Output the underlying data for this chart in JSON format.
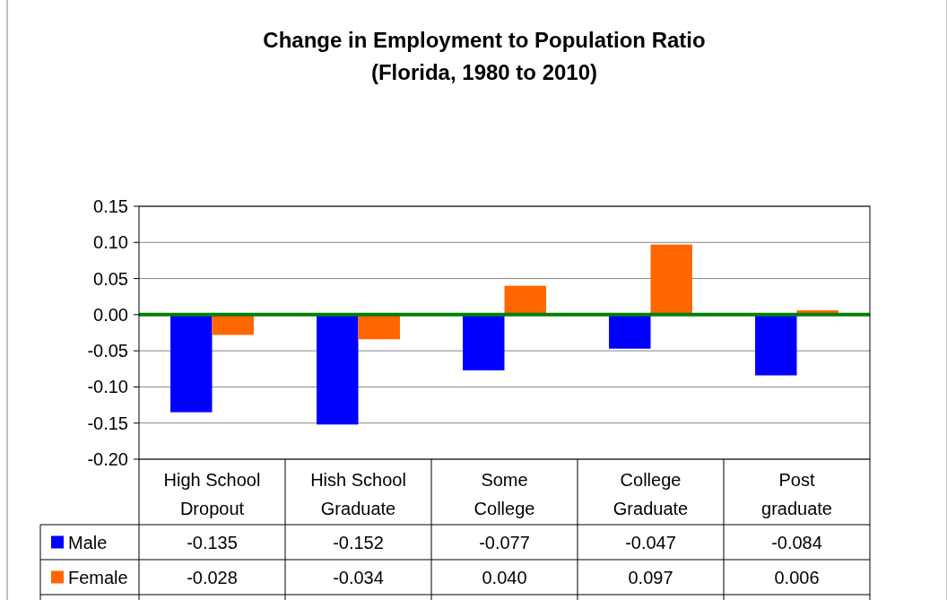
{
  "chart_data": {
    "type": "bar",
    "title": "Change in Employment to Population Ratio\n(Florida, 1980 to 2010)",
    "categories": [
      "High School Dropout",
      "Hish School Graduate",
      "Some College",
      "College Graduate",
      "Post graduate"
    ],
    "series": [
      {
        "name": "Male",
        "color": "#0000ff",
        "values": [
          -0.135,
          -0.152,
          -0.077,
          -0.047,
          -0.084
        ],
        "value_labels": [
          "-0.135",
          "-0.152",
          "-0.077",
          "-0.047",
          "-0.084"
        ]
      },
      {
        "name": "Female",
        "color": "#ff6600",
        "values": [
          -0.028,
          -0.034,
          0.04,
          0.097,
          0.006
        ],
        "value_labels": [
          "-0.028",
          "-0.034",
          "0.040",
          "0.097",
          "0.006"
        ]
      }
    ],
    "ylim": [
      -0.2,
      0.15
    ],
    "yticks": [
      {
        "value": -0.2,
        "label": "-0.20"
      },
      {
        "value": -0.15,
        "label": "-0.15"
      },
      {
        "value": -0.1,
        "label": "-0.10"
      },
      {
        "value": -0.05,
        "label": "-0.05"
      },
      {
        "value": 0,
        "label": "0.00"
      },
      {
        "value": 0.05,
        "label": "0.05"
      },
      {
        "value": 0.1,
        "label": "0.10"
      },
      {
        "value": 0.15,
        "label": "0.15"
      }
    ],
    "grid": "y",
    "legend": "bottom",
    "ref_lines": [
      {
        "axis": "y",
        "value": 0,
        "color": "#008000"
      }
    ]
  }
}
